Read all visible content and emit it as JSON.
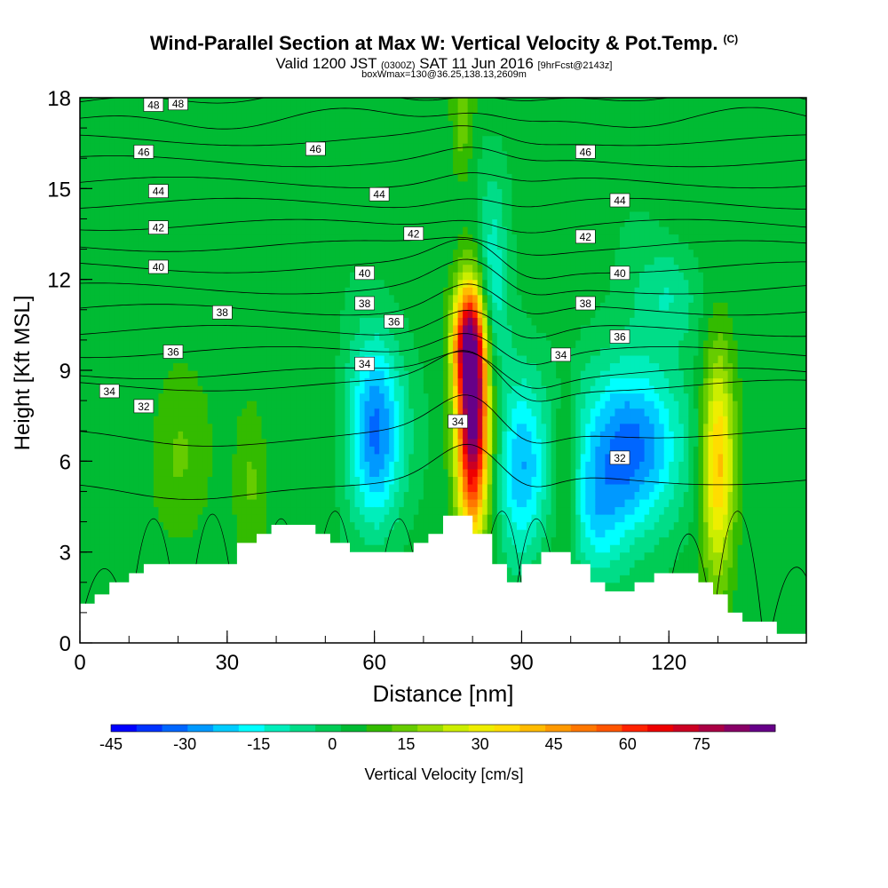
{
  "title": "Wind-Parallel Section at Max W: Vertical Velocity & Pot.Temp.",
  "title_mark": "(C)",
  "subtitle": {
    "valid": "Valid 1200 JST",
    "utc": "(0300Z)",
    "date": "SAT 11 Jun 2016",
    "fcst": "[9hrFcst@2143z]"
  },
  "subtitle2": "boxWmax=130@36.25,138.13,2609m",
  "chart_data": {
    "type": "heatmap",
    "xlabel": "Distance [nm]",
    "ylabel": "Height [Kft MSL]",
    "xlim": [
      0,
      148
    ],
    "ylim": [
      0,
      18
    ],
    "x_ticks": [
      0,
      30,
      60,
      90,
      120
    ],
    "y_ticks": [
      0,
      3,
      6,
      9,
      12,
      15,
      18
    ],
    "colorbar": {
      "label": "Vertical Velocity [cm/s]",
      "range": [
        -45,
        90
      ],
      "tick_values": [
        -45,
        -30,
        -15,
        0,
        15,
        30,
        45,
        60,
        75
      ],
      "tick_labels": [
        "-45",
        "-30",
        "-15",
        "0",
        "15",
        "30",
        "45",
        "60",
        "75"
      ],
      "colors": [
        "#0000ff",
        "#0033ff",
        "#0066ff",
        "#0099ff",
        "#00ccff",
        "#00ffff",
        "#00eebb",
        "#00dd88",
        "#00cc55",
        "#00bb33",
        "#33bb00",
        "#66cc00",
        "#99dd00",
        "#ccee00",
        "#eeee00",
        "#ffdd00",
        "#ffbb00",
        "#ff9900",
        "#ff7700",
        "#ff5500",
        "#ff2200",
        "#ee0000",
        "#cc0022",
        "#aa0044",
        "#880066",
        "#660088"
      ]
    },
    "w_features": [
      {
        "x": 80,
        "z": 7.5,
        "w": 85,
        "sx": 2.2,
        "sz": 2.6
      },
      {
        "x": 79,
        "z": 10.0,
        "w": 45,
        "sx": 2.2,
        "sz": 1.2
      },
      {
        "x": 60,
        "z": 7.0,
        "w": -35,
        "sx": 4.0,
        "sz": 2.2
      },
      {
        "x": 90,
        "z": 5.8,
        "w": -28,
        "sx": 3.5,
        "sz": 2.2
      },
      {
        "x": 112,
        "z": 6.5,
        "w": -38,
        "sx": 7.0,
        "sz": 2.0
      },
      {
        "x": 105,
        "z": 4.0,
        "w": -15,
        "sx": 4.0,
        "sz": 1.5
      },
      {
        "x": 130,
        "z": 6.0,
        "w": 38,
        "sx": 2.3,
        "sz": 2.5
      },
      {
        "x": 99,
        "z": 5.5,
        "w": 14,
        "sx": 1.8,
        "sz": 2.0
      },
      {
        "x": 35,
        "z": 5.5,
        "w": 10,
        "sx": 2.5,
        "sz": 2.0
      },
      {
        "x": 20,
        "z": 6.0,
        "w": 7,
        "sx": 4.0,
        "sz": 2.0
      },
      {
        "x": 84,
        "z": 13.0,
        "w": -12,
        "sx": 2.2,
        "sz": 2.0
      },
      {
        "x": 84,
        "z": 10.5,
        "w": -10,
        "sx": 2.5,
        "sz": 1.5
      },
      {
        "x": 78,
        "z": 17.5,
        "w": 12,
        "sx": 1.5,
        "sz": 1.5
      },
      {
        "x": 120,
        "z": 11.5,
        "w": -12,
        "sx": 5.0,
        "sz": 1.2
      }
    ],
    "terrain": [
      [
        0,
        1.3
      ],
      [
        3,
        1.3
      ],
      [
        3,
        1.6
      ],
      [
        6,
        1.6
      ],
      [
        6,
        2.0
      ],
      [
        10,
        2.0
      ],
      [
        10,
        2.3
      ],
      [
        13,
        2.3
      ],
      [
        13,
        2.6
      ],
      [
        32,
        2.6
      ],
      [
        32,
        3.3
      ],
      [
        36,
        3.3
      ],
      [
        36,
        3.6
      ],
      [
        39,
        3.6
      ],
      [
        39,
        3.9
      ],
      [
        48,
        3.9
      ],
      [
        48,
        3.6
      ],
      [
        51,
        3.6
      ],
      [
        51,
        3.3
      ],
      [
        55,
        3.3
      ],
      [
        55,
        3.0
      ],
      [
        68,
        3.0
      ],
      [
        68,
        3.3
      ],
      [
        71,
        3.3
      ],
      [
        71,
        3.6
      ],
      [
        74,
        3.6
      ],
      [
        74,
        4.2
      ],
      [
        80,
        4.2
      ],
      [
        80,
        3.6
      ],
      [
        84,
        3.6
      ],
      [
        84,
        2.6
      ],
      [
        87,
        2.6
      ],
      [
        87,
        2.0
      ],
      [
        90,
        2.0
      ],
      [
        90,
        2.6
      ],
      [
        94,
        2.6
      ],
      [
        94,
        3.0
      ],
      [
        100,
        3.0
      ],
      [
        100,
        2.6
      ],
      [
        104,
        2.6
      ],
      [
        104,
        2.0
      ],
      [
        107,
        2.0
      ],
      [
        107,
        1.7
      ],
      [
        113,
        1.7
      ],
      [
        113,
        2.0
      ],
      [
        117,
        2.0
      ],
      [
        117,
        2.3
      ],
      [
        126,
        2.3
      ],
      [
        126,
        2.0
      ],
      [
        129,
        2.0
      ],
      [
        129,
        1.6
      ],
      [
        132,
        1.6
      ],
      [
        132,
        1.0
      ],
      [
        135,
        1.0
      ],
      [
        135,
        0.7
      ],
      [
        142,
        0.7
      ],
      [
        142,
        0.3
      ],
      [
        148,
        0.3
      ]
    ],
    "theta_levels": [
      32,
      33,
      34,
      35,
      36,
      37,
      38,
      39,
      40,
      41,
      42,
      43,
      44,
      45,
      46,
      47,
      48
    ],
    "theta_labels": [
      {
        "x": 15,
        "z": 17.75,
        "v": "48"
      },
      {
        "x": 20,
        "z": 17.8,
        "v": "48"
      },
      {
        "x": 13,
        "z": 16.2,
        "v": "46"
      },
      {
        "x": 48,
        "z": 16.3,
        "v": "46"
      },
      {
        "x": 103,
        "z": 16.2,
        "v": "46"
      },
      {
        "x": 16,
        "z": 14.9,
        "v": "44"
      },
      {
        "x": 61,
        "z": 14.8,
        "v": "44"
      },
      {
        "x": 110,
        "z": 14.6,
        "v": "44"
      },
      {
        "x": 16,
        "z": 13.7,
        "v": "42"
      },
      {
        "x": 68,
        "z": 13.5,
        "v": "42"
      },
      {
        "x": 103,
        "z": 13.4,
        "v": "42"
      },
      {
        "x": 16,
        "z": 12.4,
        "v": "40"
      },
      {
        "x": 58,
        "z": 12.2,
        "v": "40"
      },
      {
        "x": 110,
        "z": 12.2,
        "v": "40"
      },
      {
        "x": 29,
        "z": 10.9,
        "v": "38"
      },
      {
        "x": 58,
        "z": 11.2,
        "v": "38"
      },
      {
        "x": 103,
        "z": 11.2,
        "v": "38"
      },
      {
        "x": 64,
        "z": 10.6,
        "v": "36"
      },
      {
        "x": 19,
        "z": 9.6,
        "v": "36"
      },
      {
        "x": 110,
        "z": 10.1,
        "v": "36"
      },
      {
        "x": 6,
        "z": 8.3,
        "v": "34"
      },
      {
        "x": 58,
        "z": 9.2,
        "v": "34"
      },
      {
        "x": 98,
        "z": 9.5,
        "v": "34"
      },
      {
        "x": 77,
        "z": 7.3,
        "v": "34"
      },
      {
        "x": 13,
        "z": 7.8,
        "v": "32"
      },
      {
        "x": 110,
        "z": 6.1,
        "v": "32"
      }
    ]
  }
}
